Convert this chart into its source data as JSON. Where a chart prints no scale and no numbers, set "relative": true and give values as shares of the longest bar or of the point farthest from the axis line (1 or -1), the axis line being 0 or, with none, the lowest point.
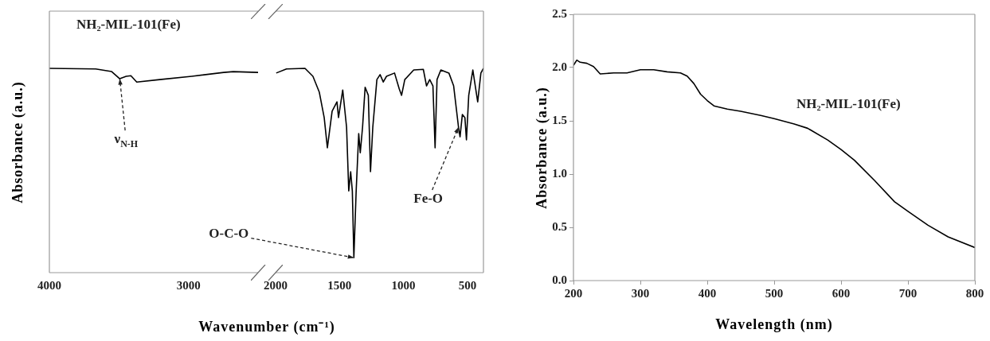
{
  "chart_data": [
    {
      "type": "line",
      "ylabel": "Absorbance (a.u.)",
      "relative": true,
      "tick_labels": "x",
      "xlim": [
        4000,
        2500
      ],
      "xticks": [
        4000,
        3000
      ],
      "x": [
        4000,
        3667,
        3552,
        3494,
        3448,
        3414,
        3372,
        3207,
        2977,
        2747,
        2678,
        2500
      ],
      "series": [
        {
          "name": "NH₂-MIL-101(Fe)",
          "color": "#000000",
          "values": [
            1.0,
            0.997,
            0.984,
            0.949,
            0.961,
            0.964,
            0.933,
            0.945,
            0.961,
            0.98,
            0.984,
            0.98
          ]
        }
      ],
      "annotations": [
        {
          "text": "ν$_{N-H}$",
          "x": 3494,
          "y": 0.949
        }
      ]
    },
    {
      "type": "line",
      "xlabel": "Wavenumber (cm⁻¹)",
      "relative": true,
      "tick_labels": "x",
      "xlim": [
        2000,
        375
      ],
      "xticks": [
        2000,
        1500,
        1000,
        500
      ],
      "x": [
        1995,
        1915,
        1770,
        1708,
        1658,
        1620,
        1595,
        1558,
        1520,
        1508,
        1475,
        1445,
        1428,
        1413,
        1400,
        1388,
        1370,
        1350,
        1338,
        1320,
        1300,
        1275,
        1258,
        1240,
        1208,
        1183,
        1158,
        1133,
        1070,
        1033,
        1015,
        990,
        920,
        845,
        820,
        795,
        770,
        753,
        738,
        708,
        645,
        608,
        570,
        558,
        540,
        520,
        508,
        490,
        458,
        420,
        395,
        375
      ],
      "series": [
        {
          "color": "#000000",
          "values": [
            0.977,
            0.997,
            1.0,
            0.961,
            0.883,
            0.759,
            0.611,
            0.79,
            0.836,
            0.759,
            0.894,
            0.712,
            0.4,
            0.494,
            0.4,
            0.073,
            0.4,
            0.681,
            0.587,
            0.712,
            0.907,
            0.868,
            0.494,
            0.712,
            0.945,
            0.969,
            0.933,
            0.961,
            0.977,
            0.899,
            0.868,
            0.945,
            0.992,
            0.995,
            0.914,
            0.945,
            0.914,
            0.611,
            0.945,
            0.992,
            0.977,
            0.914,
            0.712,
            0.665,
            0.774,
            0.759,
            0.65,
            0.868,
            0.992,
            0.836,
            0.977,
            1.0
          ]
        }
      ],
      "annotations": [
        {
          "text": "O-C-O",
          "x": 1388,
          "y": 0.073
        },
        {
          "text": "Fe-O",
          "x": 570,
          "y": 0.712
        }
      ]
    },
    {
      "type": "line",
      "xlabel": "Wavelength (nm)",
      "ylabel": "Absorbance (a.u.)",
      "xlim": [
        200,
        800
      ],
      "xticks": [
        200,
        300,
        400,
        500,
        600,
        700,
        800
      ],
      "ylim": [
        0,
        2.5
      ],
      "yticks": [
        {
          "value": 0,
          "label": "0.0"
        },
        0.5,
        {
          "value": 1,
          "label": "1.0"
        },
        1.5,
        {
          "value": 2,
          "label": "2.0"
        },
        2.5
      ],
      "x": [
        200,
        205,
        210,
        220,
        230,
        240,
        260,
        280,
        300,
        320,
        340,
        360,
        370,
        380,
        390,
        400,
        410,
        430,
        450,
        480,
        500,
        530,
        550,
        580,
        600,
        620,
        650,
        680,
        700,
        730,
        760,
        800
      ],
      "series": [
        {
          "name": "NH₂-MIL-101(Fe)",
          "color": "#000000",
          "values": [
            2.02,
            2.07,
            2.05,
            2.04,
            2.01,
            1.94,
            1.95,
            1.95,
            1.98,
            1.98,
            1.96,
            1.95,
            1.92,
            1.85,
            1.75,
            1.69,
            1.64,
            1.61,
            1.59,
            1.55,
            1.52,
            1.47,
            1.43,
            1.32,
            1.23,
            1.13,
            0.94,
            0.74,
            0.65,
            0.52,
            0.41,
            0.31
          ]
        }
      ]
    }
  ]
}
